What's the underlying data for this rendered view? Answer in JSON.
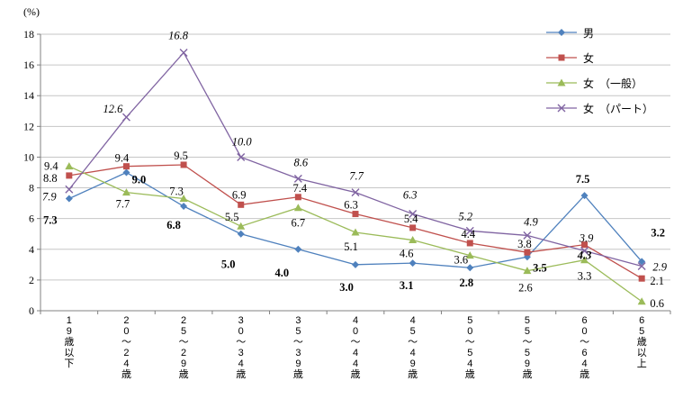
{
  "chart_data": {
    "type": "line",
    "title": "",
    "ylabel": "(%)",
    "xlabel": "",
    "ylim": [
      0,
      18
    ],
    "ytick_step": 2,
    "yticks": [
      0,
      2,
      4,
      6,
      8,
      10,
      12,
      14,
      16,
      18
    ],
    "grid": true,
    "legend_position": "top-right",
    "axis_color": "#808080",
    "grid_color": "#C6C6C6",
    "categories": [
      "19歳以下",
      "20～24歳",
      "25～29歳",
      "30～34歳",
      "35～39歳",
      "40～44歳",
      "45～49歳",
      "50～54歳",
      "55～59歳",
      "60～64歳",
      "65歳以上"
    ],
    "series": [
      {
        "name": "男",
        "color": "#4F81BD",
        "marker": "diamond",
        "values": [
          7.3,
          9.0,
          6.8,
          5.0,
          4.0,
          3.0,
          3.1,
          2.8,
          3.5,
          7.5,
          3.2
        ],
        "label_style": {
          "bold": true,
          "italic": false
        },
        "label_offsets": [
          [
            -21,
            28
          ],
          [
            14,
            12
          ],
          [
            -11,
            25
          ],
          [
            -14,
            38
          ],
          [
            -18,
            30
          ],
          [
            -10,
            29
          ],
          [
            -7,
            29
          ],
          [
            -4,
            21
          ],
          [
            14,
            16
          ],
          [
            -2,
            -14
          ],
          [
            18,
            -28
          ]
        ]
      },
      {
        "name": "女",
        "color": "#C0504D",
        "marker": "square",
        "values": [
          8.8,
          9.4,
          9.5,
          6.9,
          7.4,
          6.3,
          5.4,
          4.4,
          3.8,
          4.3,
          2.1
        ],
        "label_style": {
          "bold": false,
          "italic": false
        },
        "label_offsets": [
          [
            -21,
            7
          ],
          [
            -5,
            -5
          ],
          [
            -3,
            -6
          ],
          [
            -2,
            -7
          ],
          [
            2,
            -6
          ],
          [
            -5,
            -6
          ],
          [
            -2,
            -6
          ],
          [
            -2,
            -6
          ],
          [
            -3,
            -5
          ],
          [
            0,
            16
          ],
          [
            17,
            7
          ]
        ]
      },
      {
        "name": "女　（一般）",
        "color": "#9BBB59",
        "marker": "triangle",
        "values": [
          9.4,
          7.7,
          7.3,
          5.5,
          6.7,
          5.1,
          4.6,
          3.6,
          2.6,
          3.3,
          0.6
        ],
        "label_style": {
          "bold": false,
          "italic": false
        },
        "label_offsets": [
          [
            -20,
            4
          ],
          [
            -4,
            17
          ],
          [
            -8,
            -4
          ],
          [
            -10,
            -6
          ],
          [
            0,
            21
          ],
          [
            -5,
            20
          ],
          [
            -7,
            19
          ],
          [
            -10,
            9
          ],
          [
            -2,
            23
          ],
          [
            0,
            22
          ],
          [
            17,
            6
          ]
        ]
      },
      {
        "name": "女　（パート）",
        "color": "#8064A2",
        "marker": "x",
        "values": [
          7.9,
          12.6,
          16.8,
          10.0,
          8.6,
          7.7,
          6.3,
          5.2,
          4.9,
          3.9,
          2.9
        ],
        "label_style": {
          "bold": false,
          "italic": true
        },
        "label_offsets": [
          [
            -22,
            12
          ],
          [
            -15,
            -5
          ],
          [
            -6,
            -15
          ],
          [
            1,
            -13
          ],
          [
            3,
            -14
          ],
          [
            1,
            -14
          ],
          [
            -3,
            -17
          ],
          [
            -5,
            -12
          ],
          [
            4,
            -11
          ],
          [
            2,
            -10
          ],
          [
            20,
            5
          ]
        ]
      }
    ],
    "label_overrides": [
      {
        "series": 1,
        "index": 9,
        "color": "#C0504D",
        "bold": true,
        "italic": true
      }
    ]
  }
}
